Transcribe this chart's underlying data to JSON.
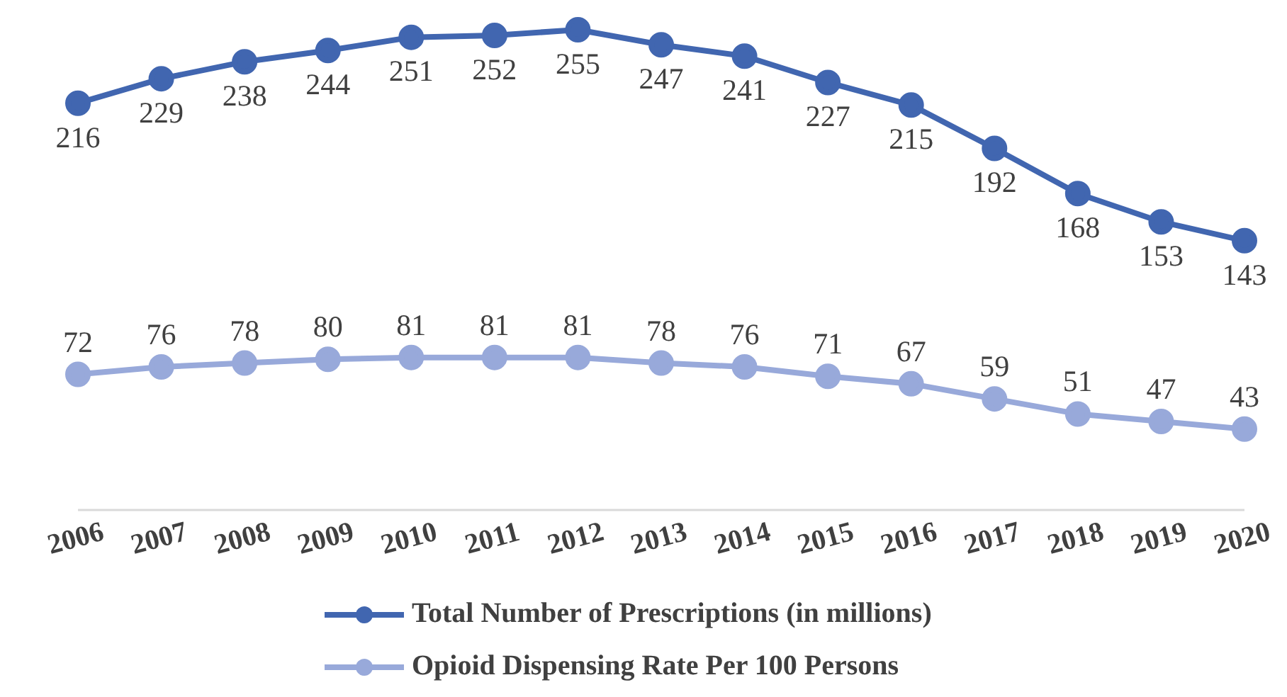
{
  "chart_data": {
    "type": "line",
    "categories": [
      "2006",
      "2007",
      "2008",
      "2009",
      "2010",
      "2011",
      "2012",
      "2013",
      "2014",
      "2015",
      "2016",
      "2017",
      "2018",
      "2019",
      "2020"
    ],
    "series": [
      {
        "name": "Total Number of Prescriptions (in millions)",
        "color": "#4166b0",
        "values": [
          216,
          229,
          238,
          244,
          251,
          252,
          255,
          247,
          241,
          227,
          215,
          192,
          168,
          153,
          143
        ]
      },
      {
        "name": "Opioid Dispensing Rate Per 100 Persons",
        "color": "#98a9da",
        "values": [
          72,
          76,
          78,
          80,
          81,
          81,
          81,
          78,
          76,
          71,
          67,
          59,
          51,
          47,
          43
        ]
      }
    ],
    "data_labels": true,
    "marker": "circle",
    "line_style": "solid",
    "grid": false,
    "legend": "bottom"
  }
}
